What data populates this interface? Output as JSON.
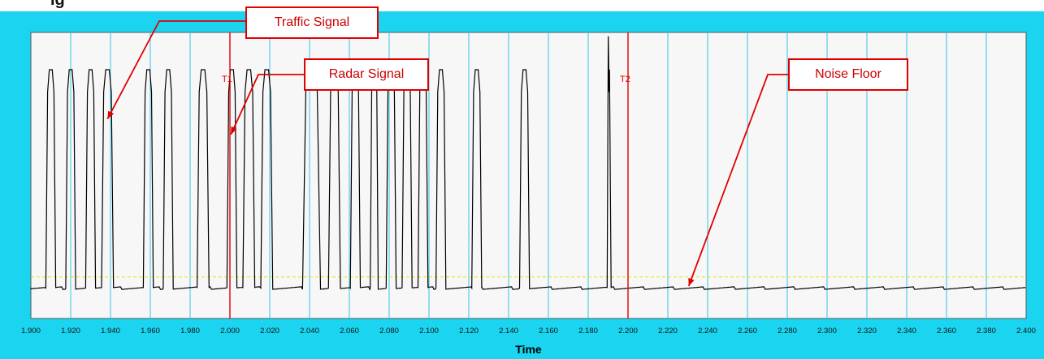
{
  "chart_data": {
    "type": "line",
    "xlabel": "Time",
    "ylabel": "",
    "xlim": [
      1.9,
      2.4
    ],
    "ylim": [
      0,
      1
    ],
    "x_ticks": [
      "1.900",
      "1.920",
      "1.940",
      "1.960",
      "1.980",
      "2.000",
      "2.020",
      "2.040",
      "2.060",
      "2.080",
      "2.100",
      "2.120",
      "2.140",
      "2.160",
      "2.180",
      "2.200",
      "2.220",
      "2.240",
      "2.260",
      "2.280",
      "2.300",
      "2.320",
      "2.340",
      "2.360",
      "2.380",
      "2.400"
    ],
    "grid": "vertical",
    "threshold_level": 0.07,
    "noise_floor_level": 0.02,
    "pulse_peak_level": 1.0,
    "pulses": [
      {
        "start": 1.9075,
        "end": 1.9125
      },
      {
        "start": 1.9175,
        "end": 1.9225
      },
      {
        "start": 1.9275,
        "end": 1.9325
      },
      {
        "start": 1.9355,
        "end": 1.9415
      },
      {
        "start": 1.9565,
        "end": 1.9615
      },
      {
        "start": 1.9665,
        "end": 1.9715
      },
      {
        "start": 1.9835,
        "end": 1.9895
      },
      {
        "start": 1.9985,
        "end": 2.0035,
        "label": "radar"
      },
      {
        "start": 2.0065,
        "end": 2.0125
      },
      {
        "start": 2.0155,
        "end": 2.0215
      },
      {
        "start": 2.0365,
        "end": 2.0455
      },
      {
        "start": 2.0495,
        "end": 2.0555
      },
      {
        "start": 2.0605,
        "end": 2.0655
      },
      {
        "start": 2.0705,
        "end": 2.0745
      },
      {
        "start": 2.0785,
        "end": 2.0835
      },
      {
        "start": 2.0865,
        "end": 2.0915
      },
      {
        "start": 2.0945,
        "end": 2.0995
      },
      {
        "start": 2.1035,
        "end": 2.1085
      },
      {
        "start": 2.1215,
        "end": 2.1265
      },
      {
        "start": 2.1455,
        "end": 2.1505
      },
      {
        "start": 2.1895,
        "end": 2.1915,
        "spike": 1.15
      }
    ],
    "markers": [
      {
        "label": "T1",
        "x": 2.0
      },
      {
        "label": "T2",
        "x": 2.2
      }
    ],
    "annotations": [
      {
        "text": "Traffic Signal",
        "target_x": 1.9385,
        "target_y": 0.75
      },
      {
        "text": "Radar Signal",
        "target_x": 2.0005,
        "target_y": 0.68
      },
      {
        "text": "Noise Floor",
        "target_x": 2.2305,
        "target_y": 0.0
      }
    ],
    "colors": {
      "frame": "#1ad4f0",
      "plot_bg": "#f7f7f7",
      "grid": "#36c3e6",
      "trace": "#000000",
      "marker": "#e00000",
      "threshold": "#f0e000",
      "annotation": "#e00000"
    }
  }
}
